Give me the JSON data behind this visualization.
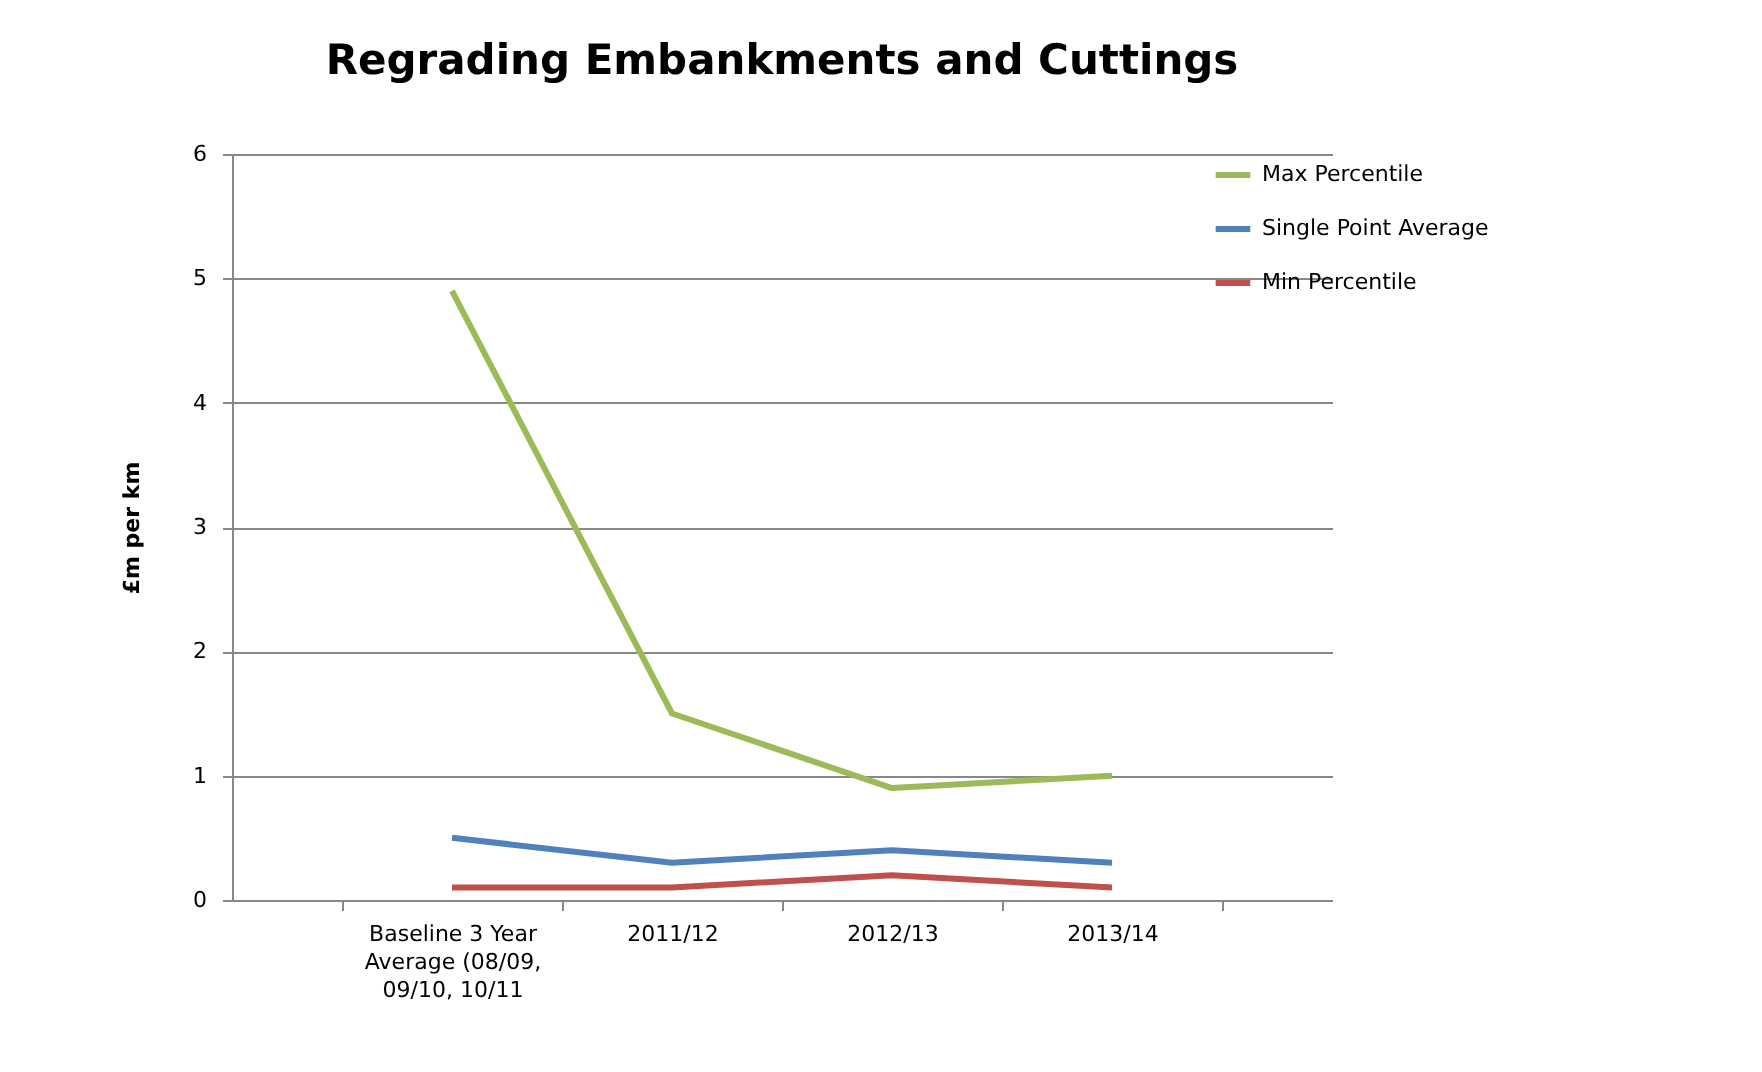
{
  "chart_data": {
    "type": "line",
    "title": "Regrading Embankments and Cuttings",
    "ylabel": "£m per km",
    "categories": [
      "Baseline 3 Year Average (08/09, 09/10, 10/11",
      "2011/12",
      "2012/13",
      "2013/14"
    ],
    "series": [
      {
        "name": "Max Percentile",
        "color": "#9bbb59",
        "values": [
          4.9,
          1.5,
          0.9,
          1.0
        ]
      },
      {
        "name": "Single Point Average",
        "color": "#4f81bd",
        "values": [
          0.5,
          0.3,
          0.4,
          0.3
        ]
      },
      {
        "name": "Min Percentile",
        "color": "#c0504d",
        "values": [
          0.1,
          0.1,
          0.2,
          0.1
        ]
      }
    ],
    "ylim": [
      0,
      6
    ],
    "yticks": [
      0,
      1,
      2,
      3,
      4,
      5,
      6
    ],
    "grid": "y",
    "legend": "right",
    "marker": "none",
    "line_style": "solid"
  }
}
